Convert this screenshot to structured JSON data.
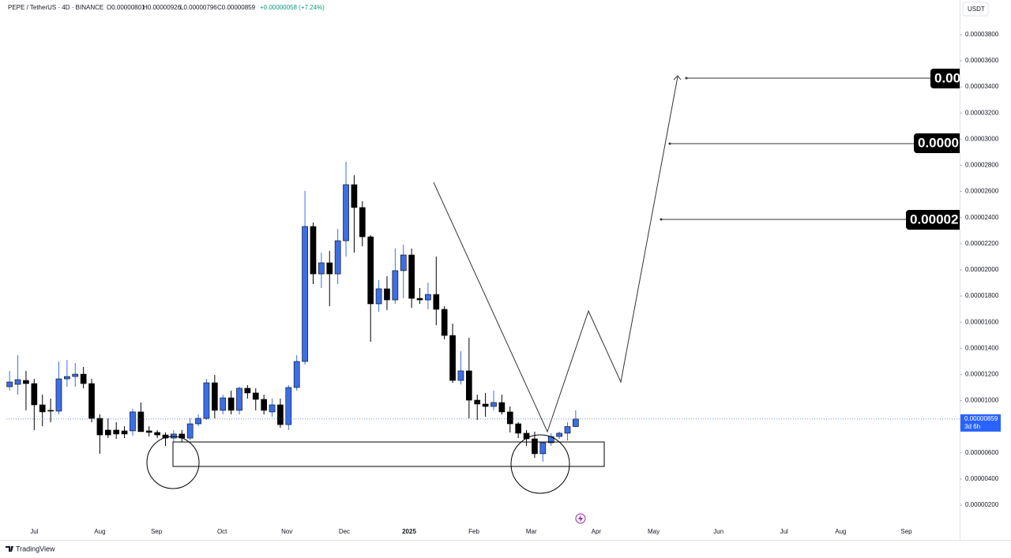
{
  "header": {
    "symbol": "PEPE / TetherUS · 4D · BINANCE",
    "open": "O0.00000801",
    "high": "H0.00000926",
    "low": "L0.00000796",
    "close": "C0.00000859",
    "change": "+0.00000058 (+7.24%)",
    "currency": "USDT",
    "countdown": "3d 6h",
    "brand": "TradingView",
    "targets": [
      "0.00",
      "0.0000",
      "0.00002"
    ]
  },
  "chart_data": {
    "type": "candlestick",
    "up_color": "#3c6ee6",
    "down_color": "#000000",
    "grid": false,
    "open": [
      1.106e-05,
      1.124e-05,
      1.154e-05,
      1.13e-05,
      9.67e-06,
      9.25e-06,
      9.19e-06,
      1.166e-05,
      1.184e-05,
      1.202e-05,
      1.13e-05,
      8.64e-06,
      7.74e-06,
      7.74e-06,
      7.68e-06,
      7.68e-06,
      9.13e-06,
      7.68e-06,
      7.56e-06,
      7.37e-06,
      7.13e-06,
      7.44e-06,
      7.13e-06,
      8.22e-06,
      8.64e-06,
      1.136e-05,
      9.25e-06,
      1.021e-05,
      9.25e-06,
      1.094e-05,
      1.058e-05,
      1.009e-05,
      9.13e-06,
      9.67e-06,
      8.16e-06,
      1.1e-05,
      1.299e-05,
      2.332e-05,
      1.969e-05,
      2.054e-05,
      1.969e-05,
      2.223e-05,
      2.652e-05,
      2.477e-05,
      2.253e-05,
      1.74e-05,
      1.855e-05,
      1.77e-05,
      1.994e-05,
      2.114e-05,
      1.782e-05,
      1.77e-05,
      1.812e-05,
      1.698e-05,
      1.498e-05,
      1.154e-05,
      1.227e-05,
      1.003e-05,
      9.73e-06,
      9.55e-06,
      9.85e-06,
      9.13e-06,
      8.22e-06,
      7.5e-06,
      7.07e-06,
      5.93e-06,
      6.77e-06,
      7.25e-06,
      7.5e-06,
      8.01e-06
    ],
    "high": [
      1.227e-05,
      1.347e-05,
      1.227e-05,
      1.166e-05,
      1.045e-05,
      1.015e-05,
      1.299e-05,
      1.311e-05,
      1.287e-05,
      1.257e-05,
      1.166e-05,
      8.94e-06,
      8.64e-06,
      8.34e-06,
      8.04e-06,
      9.37e-06,
      9.85e-06,
      8.04e-06,
      7.74e-06,
      7.56e-06,
      7.74e-06,
      7.74e-06,
      8.64e-06,
      8.94e-06,
      1.166e-05,
      1.196e-05,
      1.045e-05,
      1.076e-05,
      1.106e-05,
      1.118e-05,
      1.094e-05,
      1.045e-05,
      1.015e-05,
      1.015e-05,
      1.118e-05,
      1.347e-05,
      2.604e-05,
      2.362e-05,
      2.132e-05,
      2.145e-05,
      2.314e-05,
      2.827e-05,
      2.724e-05,
      2.525e-05,
      2.265e-05,
      1.921e-05,
      1.951e-05,
      2.163e-05,
      2.193e-05,
      2.163e-05,
      1.861e-05,
      1.903e-05,
      2.102e-05,
      1.722e-05,
      1.589e-05,
      1.378e-05,
      1.48e-05,
      1.045e-05,
      1.058e-05,
      1.076e-05,
      1.045e-05,
      9.55e-06,
      8.34e-06,
      7.74e-06,
      7.62e-06,
      6.77e-06,
      7.5e-06,
      7.62e-06,
      8.34e-06,
      9.26e-06
    ],
    "low": [
      1.076e-05,
      1.045e-05,
      9.25e-06,
      7.74e-06,
      8.04e-06,
      8.34e-06,
      8.94e-06,
      1.106e-05,
      1.106e-05,
      1.094e-05,
      8.34e-06,
      5.93e-06,
      7.13e-06,
      7.07e-06,
      7.13e-06,
      7.31e-06,
      7.68e-06,
      7.25e-06,
      7.13e-06,
      6.53e-06,
      6.83e-06,
      6.83e-06,
      6.95e-06,
      8.04e-06,
      8.52e-06,
      8.64e-06,
      8.94e-06,
      8.94e-06,
      8.94e-06,
      1.015e-05,
      9.25e-06,
      8.94e-06,
      8.76e-06,
      7.92e-06,
      7.74e-06,
      1.076e-05,
      1.275e-05,
      1.891e-05,
      1.861e-05,
      1.722e-05,
      1.891e-05,
      2.102e-05,
      2.132e-05,
      2.181e-05,
      1.45e-05,
      1.68e-05,
      1.692e-05,
      1.74e-05,
      1.782e-05,
      1.71e-05,
      1.74e-05,
      1.698e-05,
      1.577e-05,
      1.468e-05,
      1.136e-05,
      1.124e-05,
      8.64e-06,
      8.52e-06,
      8.76e-06,
      9.25e-06,
      8.94e-06,
      7.56e-06,
      7.13e-06,
      6.53e-06,
      5.62e-06,
      5.32e-06,
      6.53e-06,
      7.07e-06,
      6.95e-06,
      7.96e-06
    ],
    "close": [
      1.142e-05,
      1.16e-05,
      1.13e-05,
      9.67e-06,
      9.13e-06,
      9.19e-06,
      1.166e-05,
      1.184e-05,
      1.202e-05,
      1.13e-05,
      8.64e-06,
      7.37e-06,
      7.37e-06,
      7.44e-06,
      7.44e-06,
      9.13e-06,
      7.62e-06,
      7.56e-06,
      7.37e-06,
      7.13e-06,
      7.44e-06,
      7.13e-06,
      8.22e-06,
      8.64e-06,
      1.136e-05,
      9.25e-06,
      1.021e-05,
      9.25e-06,
      1.094e-05,
      1.058e-05,
      1.009e-05,
      9.25e-06,
      9.67e-06,
      8.16e-06,
      1.1e-05,
      1.299e-05,
      2.332e-05,
      1.969e-05,
      2.054e-05,
      1.969e-05,
      2.223e-05,
      2.652e-05,
      2.477e-05,
      2.253e-05,
      1.74e-05,
      1.855e-05,
      1.77e-05,
      1.994e-05,
      2.114e-05,
      1.782e-05,
      1.77e-05,
      1.812e-05,
      1.698e-05,
      1.498e-05,
      1.154e-05,
      1.227e-05,
      1.003e-05,
      9.73e-06,
      9.55e-06,
      9.85e-06,
      9.13e-06,
      8.22e-06,
      7.5e-06,
      7.07e-06,
      5.93e-06,
      6.77e-06,
      7.25e-06,
      7.5e-06,
      8.01e-06,
      8.59e-06
    ],
    "xlim": [
      -0.4,
      115.8
    ],
    "xticks": [
      {
        "value": 3,
        "label": "Jul"
      },
      {
        "value": 11,
        "label": "Aug"
      },
      {
        "value": 17.9,
        "label": "Sep"
      },
      {
        "value": 25.9,
        "label": "Oct"
      },
      {
        "value": 33.8,
        "label": "Nov"
      },
      {
        "value": 40.8,
        "label": "Dec"
      },
      {
        "value": 48.7,
        "label": "2025"
      },
      {
        "value": 56.6,
        "label": "Feb"
      },
      {
        "value": 63.6,
        "label": "Mar"
      },
      {
        "value": 71.5,
        "label": "Apr"
      },
      {
        "value": 78.5,
        "label": "May"
      },
      {
        "value": 86.4,
        "label": "Jun"
      },
      {
        "value": 94.4,
        "label": "Jul"
      },
      {
        "value": 101.3,
        "label": "Aug"
      },
      {
        "value": 109.3,
        "label": "Sep"
      }
    ],
    "ylim": [
      6.1e-07,
      4.065e-05
    ],
    "yticks": [
      {
        "value": 2e-06,
        "label": "0.00000200"
      },
      {
        "value": 4e-06,
        "label": "0.00000400"
      },
      {
        "value": 6e-06,
        "label": "0.00000600"
      },
      {
        "value": 8e-06,
        "label": "0.00000800"
      },
      {
        "value": 1e-05,
        "label": "0.00001000"
      },
      {
        "value": 1.2e-05,
        "label": "0.00001200"
      },
      {
        "value": 1.4e-05,
        "label": "0.00001400"
      },
      {
        "value": 1.6e-05,
        "label": "0.00001600"
      },
      {
        "value": 1.8e-05,
        "label": "0.00001800"
      },
      {
        "value": 2e-05,
        "label": "0.00002000"
      },
      {
        "value": 2.2e-05,
        "label": "0.00002200"
      },
      {
        "value": 2.4e-05,
        "label": "0.00002400"
      },
      {
        "value": 2.6e-05,
        "label": "0.00002600"
      },
      {
        "value": 2.8e-05,
        "label": "0.00002800"
      },
      {
        "value": 3e-05,
        "label": "0.00003000"
      },
      {
        "value": 3.2e-05,
        "label": "0.00003200"
      },
      {
        "value": 3.4e-05,
        "label": "0.00003400"
      },
      {
        "value": 3.6e-05,
        "label": "0.00003600"
      },
      {
        "value": 3.8e-05,
        "label": "0.00003800"
      }
    ]
  }
}
